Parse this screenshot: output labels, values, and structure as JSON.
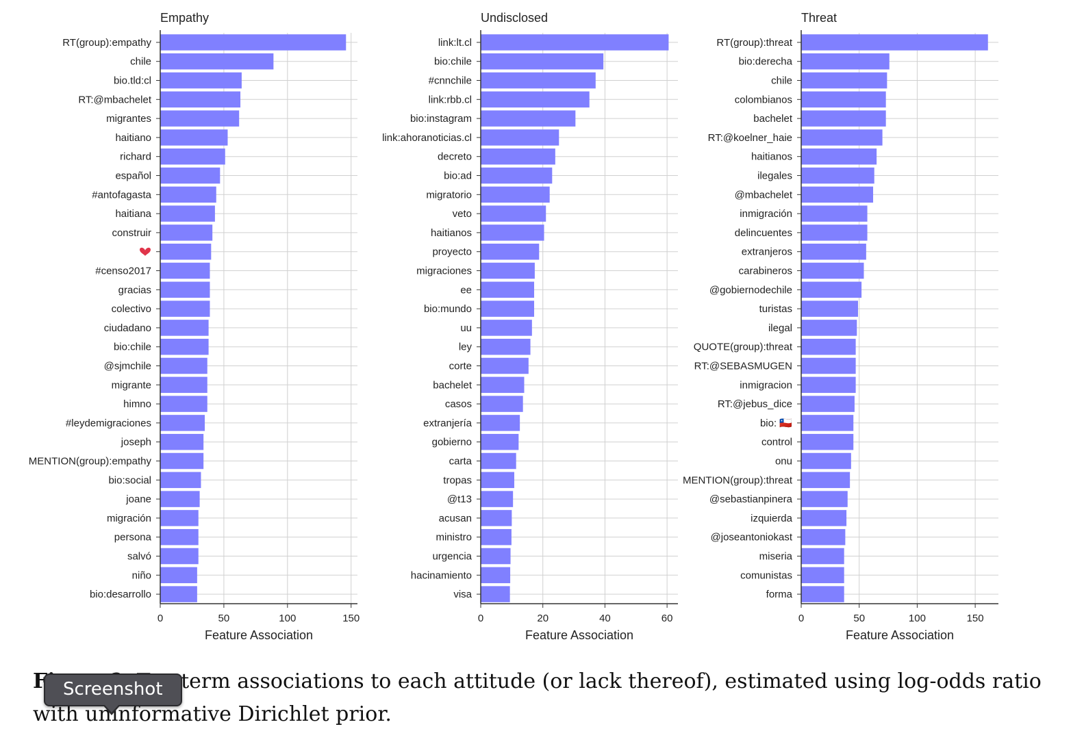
{
  "colors": {
    "bar": "#8080ff",
    "grid": "#d0d0d0",
    "axis": "#333333",
    "heart": "#e0354a"
  },
  "chart_data": [
    {
      "type": "bar",
      "orientation": "horizontal",
      "title": "Empathy",
      "xlabel": "Feature Association",
      "xlim": [
        0,
        155
      ],
      "xticks": [
        0,
        50,
        100,
        150
      ],
      "grid": true,
      "categories": [
        "RT(group):empathy",
        "chile",
        "bio.tld:cl",
        "RT:@mbachelet",
        "migrantes",
        "haitiano",
        "richard",
        "español",
        "#antofagasta",
        "haitiana",
        "construir",
        "❤",
        "#censo2017",
        "gracias",
        "colectivo",
        "ciudadano",
        "bio:chile",
        "@sjmchile",
        "migrante",
        "himno",
        "#leydemigraciones",
        "joseph",
        "MENTION(group):empathy",
        "bio:social",
        "joane",
        "migración",
        "persona",
        "salvó",
        "niño",
        "bio:desarrollo"
      ],
      "values": [
        146,
        89,
        64,
        63,
        62,
        53,
        51,
        47,
        44,
        43,
        41,
        40,
        39,
        39,
        39,
        38,
        38,
        37,
        37,
        37,
        35,
        34,
        34,
        32,
        31,
        30,
        30,
        30,
        29,
        29
      ]
    },
    {
      "type": "bar",
      "orientation": "horizontal",
      "title": "Undisclosed",
      "xlabel": "Feature Association",
      "xlim": [
        0,
        63.5
      ],
      "xticks": [
        0,
        20,
        40,
        60
      ],
      "grid": true,
      "categories": [
        "link:lt.cl",
        "bio:chile",
        "#cnnchile",
        "link:rbb.cl",
        "bio:instagram",
        "link:ahoranoticias.cl",
        "decreto",
        "bio:ad",
        "migratorio",
        "veto",
        "haitianos",
        "proyecto",
        "migraciones",
        "ee",
        "bio:mundo",
        "uu",
        "ley",
        "corte",
        "bachelet",
        "casos",
        "extranjería",
        "gobierno",
        "carta",
        "tropas",
        "@t13",
        "acusan",
        "ministro",
        "urgencia",
        "hacinamiento",
        "visa"
      ],
      "values": [
        60.5,
        39.5,
        37,
        35,
        30.5,
        25.2,
        24,
        23,
        22.2,
        21,
        20.4,
        18.8,
        17.4,
        17.2,
        17.2,
        16.5,
        16,
        15.4,
        14,
        13.6,
        12.6,
        12.2,
        11.4,
        10.8,
        10.4,
        10,
        9.9,
        9.6,
        9.5,
        9.4
      ]
    },
    {
      "type": "bar",
      "orientation": "horizontal",
      "title": "Threat",
      "xlabel": "Feature Association",
      "xlim": [
        0,
        170
      ],
      "xticks": [
        0,
        50,
        100,
        150
      ],
      "grid": true,
      "categories": [
        "RT(group):threat",
        "bio:derecha",
        "chile",
        "colombianos",
        "bachelet",
        "RT:@koelner_haie",
        "haitianos",
        "ilegales",
        "@mbachelet",
        "inmigración",
        "delincuentes",
        "extranjeros",
        "carabineros",
        "@gobiernodechile",
        "turistas",
        "ilegal",
        "QUOTE(group):threat",
        "RT:@SEBASMUGEN",
        "inmigracion",
        "RT:@jebus_dice",
        "bio: 🇨🇱",
        "control",
        "onu",
        "MENTION(group):threat",
        "@sebastianpinera",
        "izquierda",
        "@joseantoniokast",
        "miseria",
        "comunistas",
        "forma"
      ],
      "values": [
        161,
        76,
        74,
        73,
        73,
        70,
        65,
        63,
        62,
        57,
        57,
        56,
        54,
        52,
        49,
        48,
        47,
        47,
        47,
        46,
        45,
        45,
        43,
        42,
        40,
        39,
        38,
        37,
        37,
        37
      ]
    }
  ],
  "caption": {
    "fig_label": "Fi",
    "text": "gure 3: Top term associations to each attitude (or lack thereof), estimated using log-odds ratio with uninformative Dirichlet prior."
  },
  "tooltip": {
    "label": "Screenshot"
  }
}
